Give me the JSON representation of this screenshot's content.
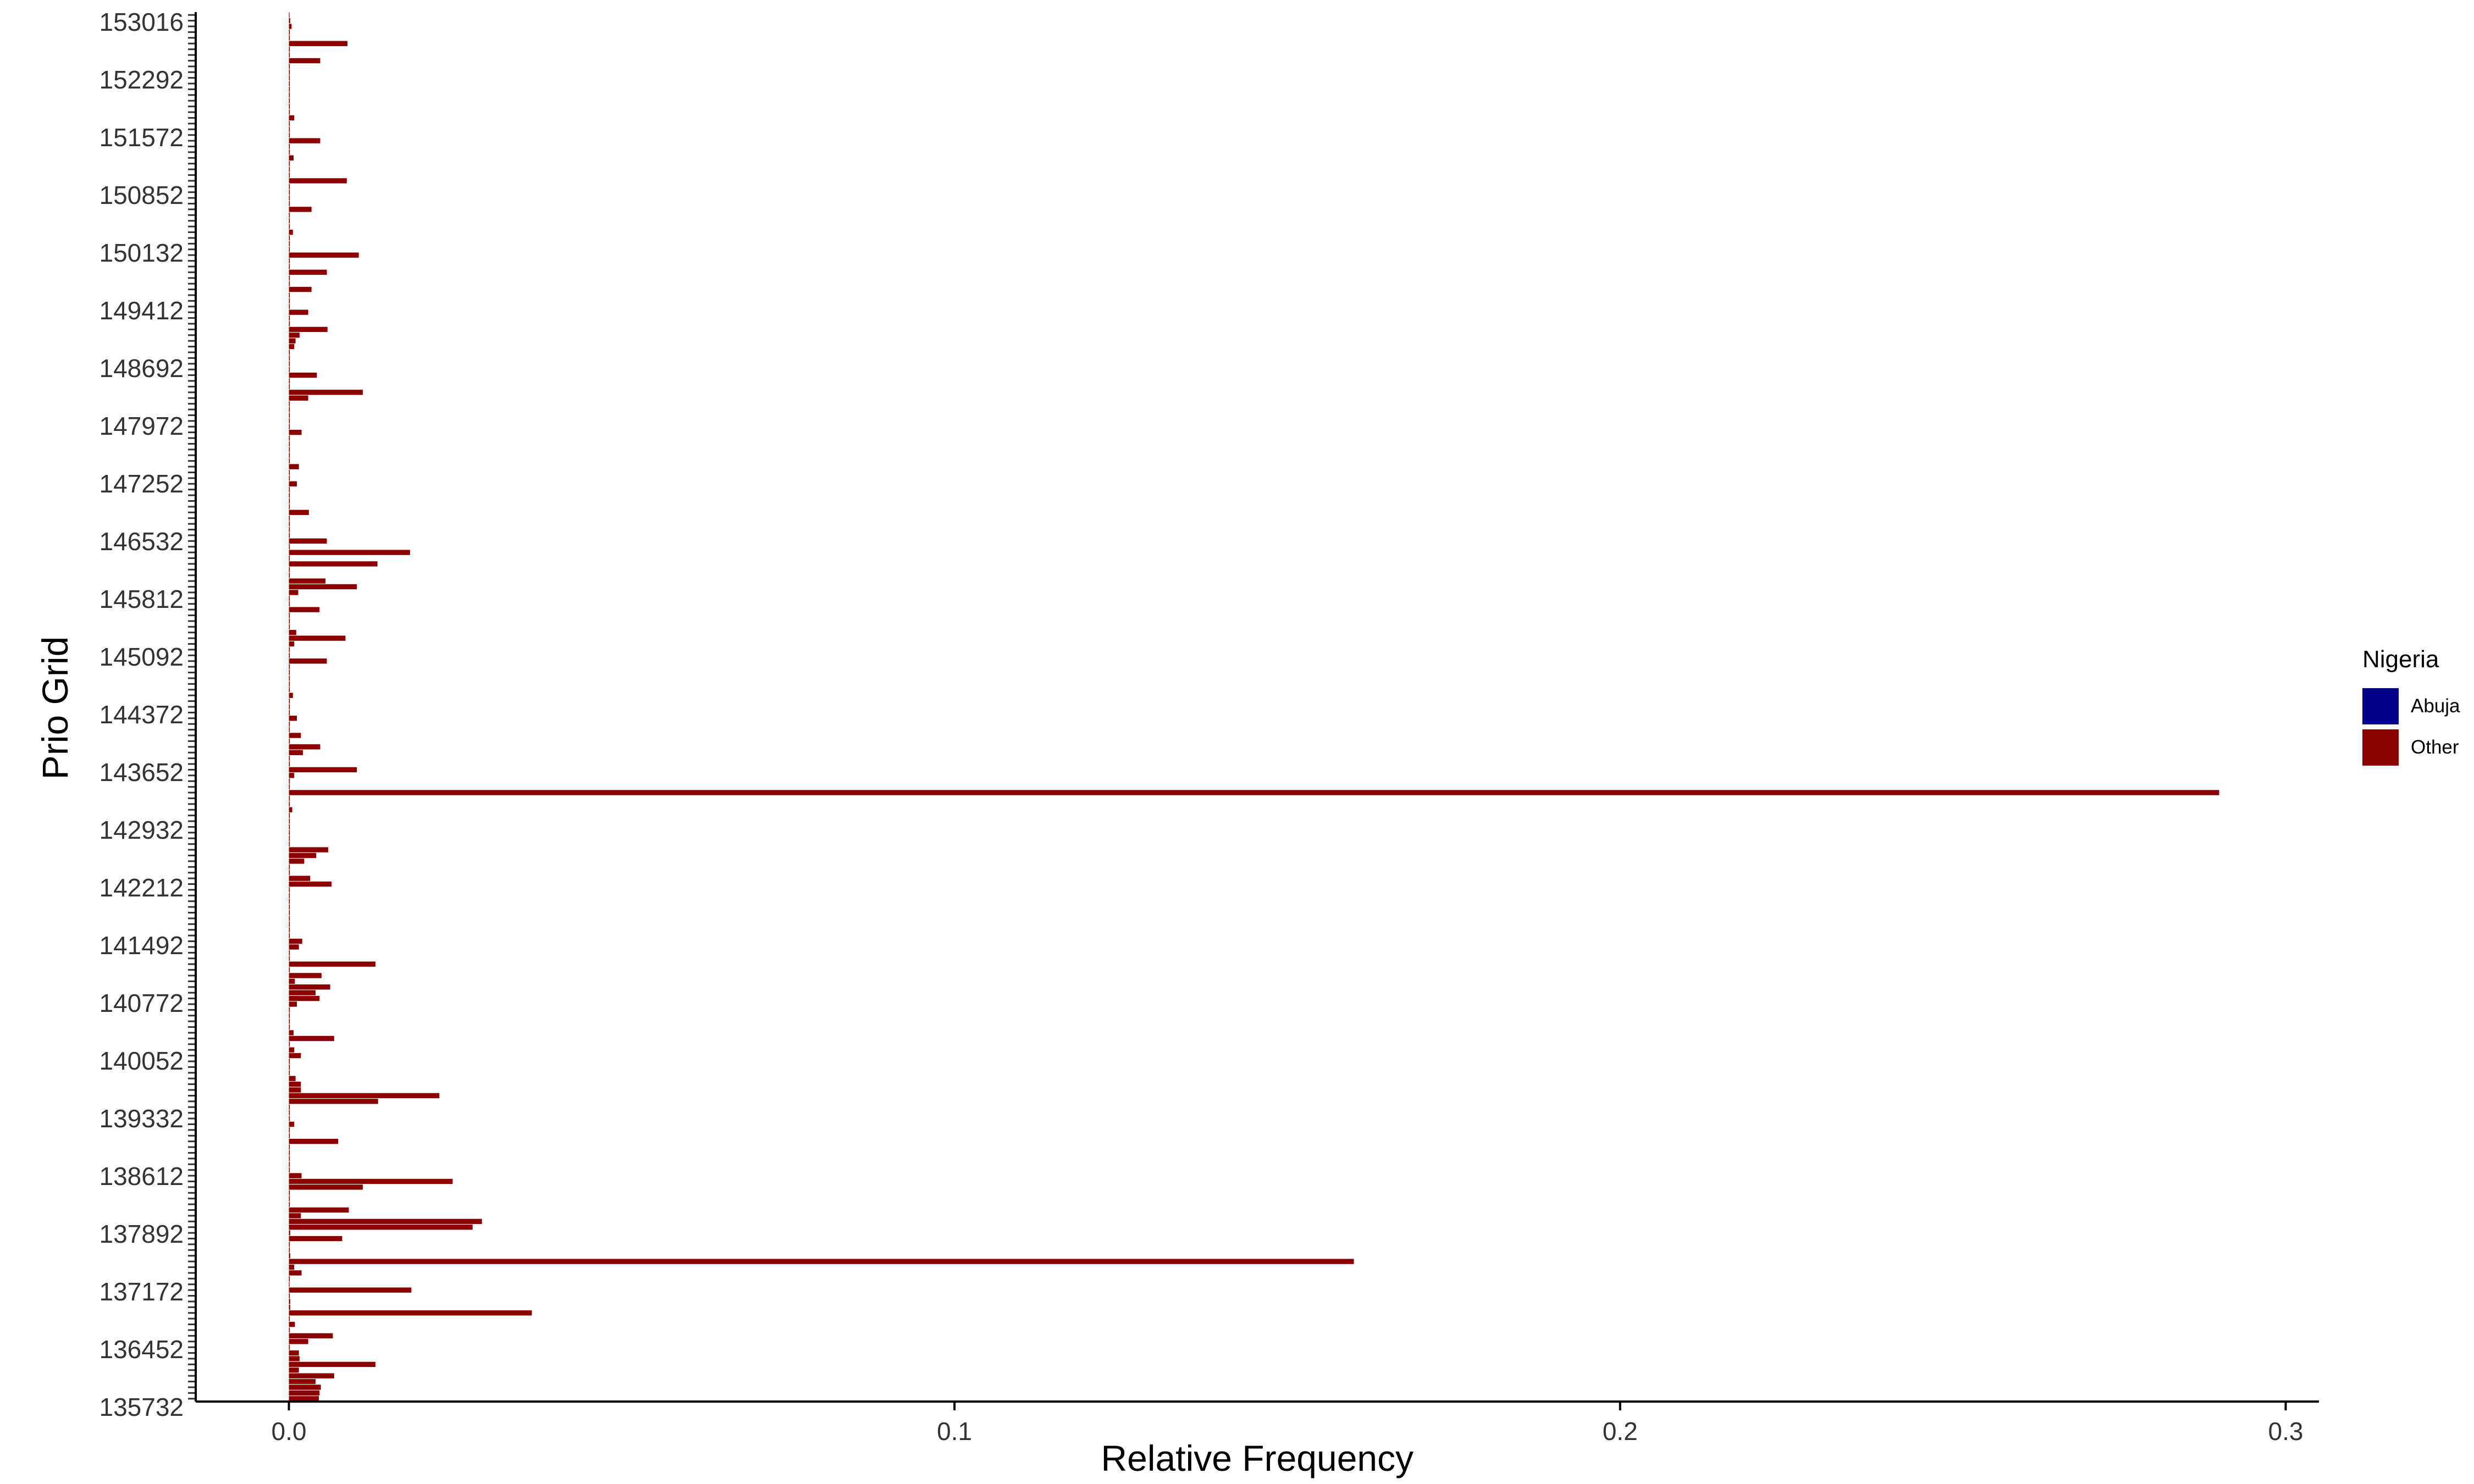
{
  "chart_data": {
    "type": "bar",
    "orientation": "horizontal",
    "xlabel": "Relative Frequency",
    "ylabel": "Prio Grid",
    "xlim": [
      -0.014,
      0.305
    ],
    "xticks": [
      0.0,
      0.1,
      0.2,
      0.3
    ],
    "xtick_labels": [
      "0.0",
      "0.1",
      "0.2",
      "0.3"
    ],
    "grid": false,
    "legend": {
      "title": "Nigeria",
      "position": "right",
      "entries": [
        {
          "label": "Abuja",
          "color": "#00008B"
        },
        {
          "label": "Other",
          "color": "#8B0000"
        }
      ]
    },
    "series": [
      {
        "name": "Other",
        "color": "#8B0000",
        "categories": [
          "135732",
          "136452",
          "137172",
          "137892",
          "138612",
          "139332",
          "140052",
          "140772",
          "141492",
          "142212",
          "142932",
          "143652",
          "144372",
          "145092",
          "145812",
          "146532",
          "147252",
          "147972",
          "148692",
          "149412",
          "150132",
          "150852",
          "151572",
          "152292",
          "153016"
        ],
        "values": [
          0.0045,
          0.0046,
          0.0048,
          0.004,
          0.0068,
          0.0015,
          0.013,
          0.0016,
          0.0015,
          0.0,
          0.0029,
          0.0066,
          0.0,
          0.0009,
          0.0,
          0.0365,
          0.0002,
          0.0002,
          0.0,
          0.0184,
          0.0001,
          0.0,
          0.0019,
          0.0008,
          0.16,
          0.0002,
          0.0,
          0.0,
          0.008,
          0.0002,
          0.0276,
          0.029,
          0.0018,
          0.009,
          0.0,
          0.0,
          0.0,
          0.0111,
          0.0246,
          0.0019,
          0.0,
          0.0,
          0.0,
          0.0,
          0.0,
          0.0074,
          0.0,
          0.0,
          0.0008,
          0.0,
          0.0,
          0.0,
          0.0134,
          0.0226,
          0.0018,
          0.0018,
          0.001,
          0.0,
          0.0,
          0.0,
          0.0018,
          0.0008,
          0.0,
          0.0068,
          0.0007,
          0.0,
          0.0,
          0.0,
          0.0,
          0.0012,
          0.0046,
          0.004,
          0.0062,
          0.0009,
          0.0049,
          0.0,
          0.013,
          0.0,
          0.0,
          0.0015,
          0.002,
          0.0,
          0.0,
          0.0,
          0.0,
          0.0,
          0.0,
          0.0,
          0.0,
          0.0,
          0.0064,
          0.0032,
          0.0,
          0.0,
          0.0023,
          0.0041,
          0.0059,
          0.0,
          0.0,
          0.0,
          0.0,
          0.0,
          0.0,
          0.0005,
          0.0,
          0.0,
          0.29,
          0.0,
          0.0,
          0.0008,
          0.0102,
          0.0,
          0.0,
          0.0021,
          0.0047,
          0.0,
          0.0018,
          0.0,
          0.0,
          0.0012,
          0.0,
          0.0,
          0.0,
          0.0006,
          0.0,
          0.0,
          0.0,
          0.0,
          0.0,
          0.0057,
          0.0,
          0.0,
          0.0008,
          0.0085,
          0.0011,
          0.0,
          0.0,
          0.0,
          0.0046,
          0.0,
          0.0,
          0.0014,
          0.0102,
          0.0055,
          0.0,
          0.0,
          0.0133,
          0.0,
          0.0182,
          0.0,
          0.0057,
          0.0,
          0.0,
          0.0,
          0.0,
          0.003,
          0.0,
          0.0,
          0.0,
          0.0,
          0.0012,
          0.0,
          0.0,
          0.0015,
          0.0,
          0.0,
          0.0,
          0.0,
          0.0,
          0.0019,
          0.0,
          0.0,
          0.0,
          0.0,
          0.0,
          0.0029,
          0.0111,
          0.0,
          0.0,
          0.0042,
          0.0,
          0.0,
          0.0,
          0.0,
          0.0008,
          0.001,
          0.0016,
          0.0058,
          0.0,
          0.0,
          0.0029,
          0.0,
          0.0,
          0.0,
          0.0034,
          0.0,
          0.0,
          0.0057,
          0.0,
          0.0,
          0.0105,
          0.0,
          0.0,
          0.0,
          0.0006,
          0.0,
          0.0,
          0.0,
          0.0034,
          0.0,
          0.0,
          0.0,
          0.0,
          0.0087,
          0.0,
          0.0,
          0.0,
          0.0007,
          0.0,
          0.0,
          0.0047,
          0.0,
          0.0,
          0.0,
          0.0008,
          0.0,
          0.0,
          0.0,
          0.0,
          0.0,
          0.0,
          0.0,
          0.0,
          0.0,
          0.0047,
          0.0,
          0.0,
          0.0088,
          0.0,
          0.0,
          0.0004,
          0.0002,
          0.0001
        ]
      },
      {
        "name": "Abuja",
        "color": "#00008B",
        "values": []
      }
    ]
  }
}
